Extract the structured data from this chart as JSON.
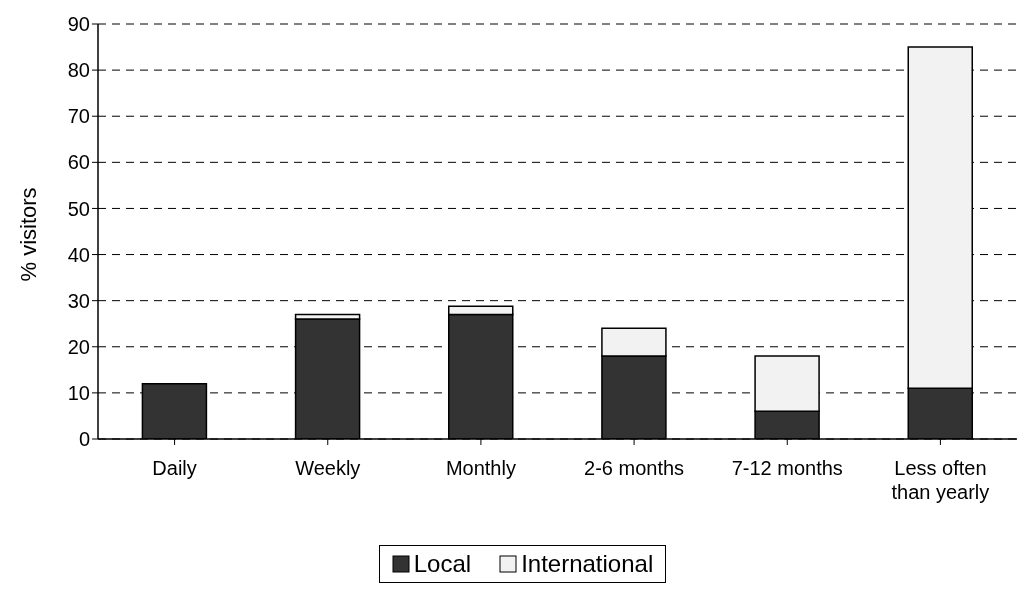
{
  "chart_data": {
    "type": "bar",
    "stacked": true,
    "ylabel": "% visitors",
    "categories": [
      "Daily",
      "Weekly",
      "Monthly",
      "2-6 months",
      "7-12 months",
      "Less often than yearly"
    ],
    "series": [
      {
        "name": "Local",
        "color": "#333333",
        "values": [
          12,
          26,
          27,
          18,
          6,
          11
        ]
      },
      {
        "name": "International",
        "color": "#f2f2f2",
        "values": [
          0,
          1,
          1.8,
          6,
          12,
          74
        ]
      }
    ],
    "ylim": [
      0,
      90
    ],
    "yticks": [
      0,
      10,
      20,
      30,
      40,
      50,
      60,
      70,
      80,
      90
    ],
    "grid": "y",
    "legend": "bottom"
  }
}
